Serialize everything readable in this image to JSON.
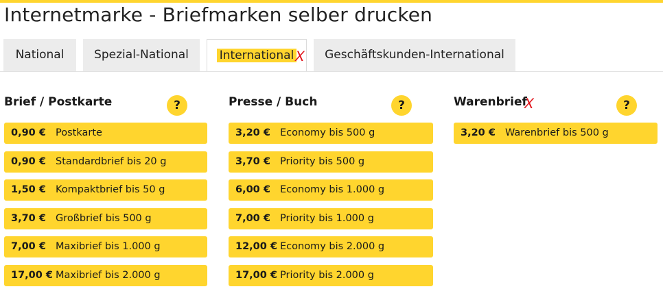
{
  "colors": {
    "accent": "#ffd52e",
    "tab_bg": "#ececec",
    "mark": "#e1141b"
  },
  "page": {
    "title": "Internetmarke - Briefmarken selber drucken"
  },
  "tabs": [
    {
      "label": "National",
      "active": false
    },
    {
      "label": "Spezial-National",
      "active": false
    },
    {
      "label": "International",
      "active": true,
      "annotation": "X"
    },
    {
      "label": "Geschäftskunden-International",
      "active": false
    }
  ],
  "columns": [
    {
      "title": "Brief / Postkarte",
      "help_label": "?",
      "annotation": "",
      "items": [
        {
          "price": "0,90 €",
          "label": "Postkarte"
        },
        {
          "price": "0,90 €",
          "label": "Standardbrief bis 20 g"
        },
        {
          "price": "1,50 €",
          "label": "Kompaktbrief bis 50 g"
        },
        {
          "price": "3,70 €",
          "label": "Großbrief bis 500 g"
        },
        {
          "price": "7,00 €",
          "label": "Maxibrief bis 1.000 g"
        },
        {
          "price": "17,00 €",
          "label": "Maxibrief bis 2.000 g"
        }
      ]
    },
    {
      "title": "Presse / Buch",
      "help_label": "?",
      "annotation": "",
      "items": [
        {
          "price": "3,20 €",
          "label": "Economy bis 500 g"
        },
        {
          "price": "3,70 €",
          "label": "Priority bis 500 g"
        },
        {
          "price": "6,00 €",
          "label": "Economy bis 1.000 g"
        },
        {
          "price": "7,00 €",
          "label": "Priority bis 1.000 g"
        },
        {
          "price": "12,00 €",
          "label": "Economy bis 2.000 g"
        },
        {
          "price": "17,00 €",
          "label": "Priority bis 2.000 g"
        }
      ]
    },
    {
      "title": "Warenbrief",
      "help_label": "?",
      "annotation": "X",
      "items": [
        {
          "price": "3,20 €",
          "label": "Warenbrief bis 500 g"
        }
      ]
    }
  ]
}
